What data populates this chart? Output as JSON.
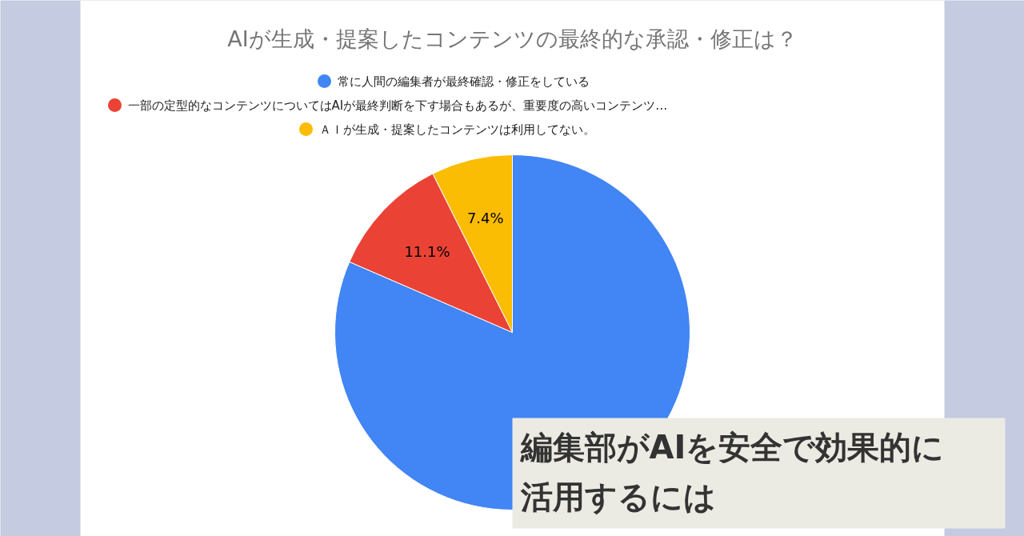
{
  "chart_data": {
    "type": "pie",
    "title": "AIが生成・提案したコンテンツの最終的な承認・修正は？",
    "categories": [
      "常に人間の編集者が最終確認・修正をしている",
      "一部の定型的なコンテンツについてはAIが最終判断を下す場合もあるが、重要度の高いコンテンツ…",
      "ＡＩが生成・提案したコンテンツは利用してない。"
    ],
    "values": [
      81.5,
      11.1,
      7.4
    ],
    "colors": [
      "#4285f4",
      "#ea4335",
      "#fbbc04"
    ],
    "value_labels": [
      null,
      "11.1%",
      "7.4%"
    ],
    "legend": "top",
    "annotations": [
      "編集部がAIを安全で効果的に",
      "活用するには"
    ]
  }
}
